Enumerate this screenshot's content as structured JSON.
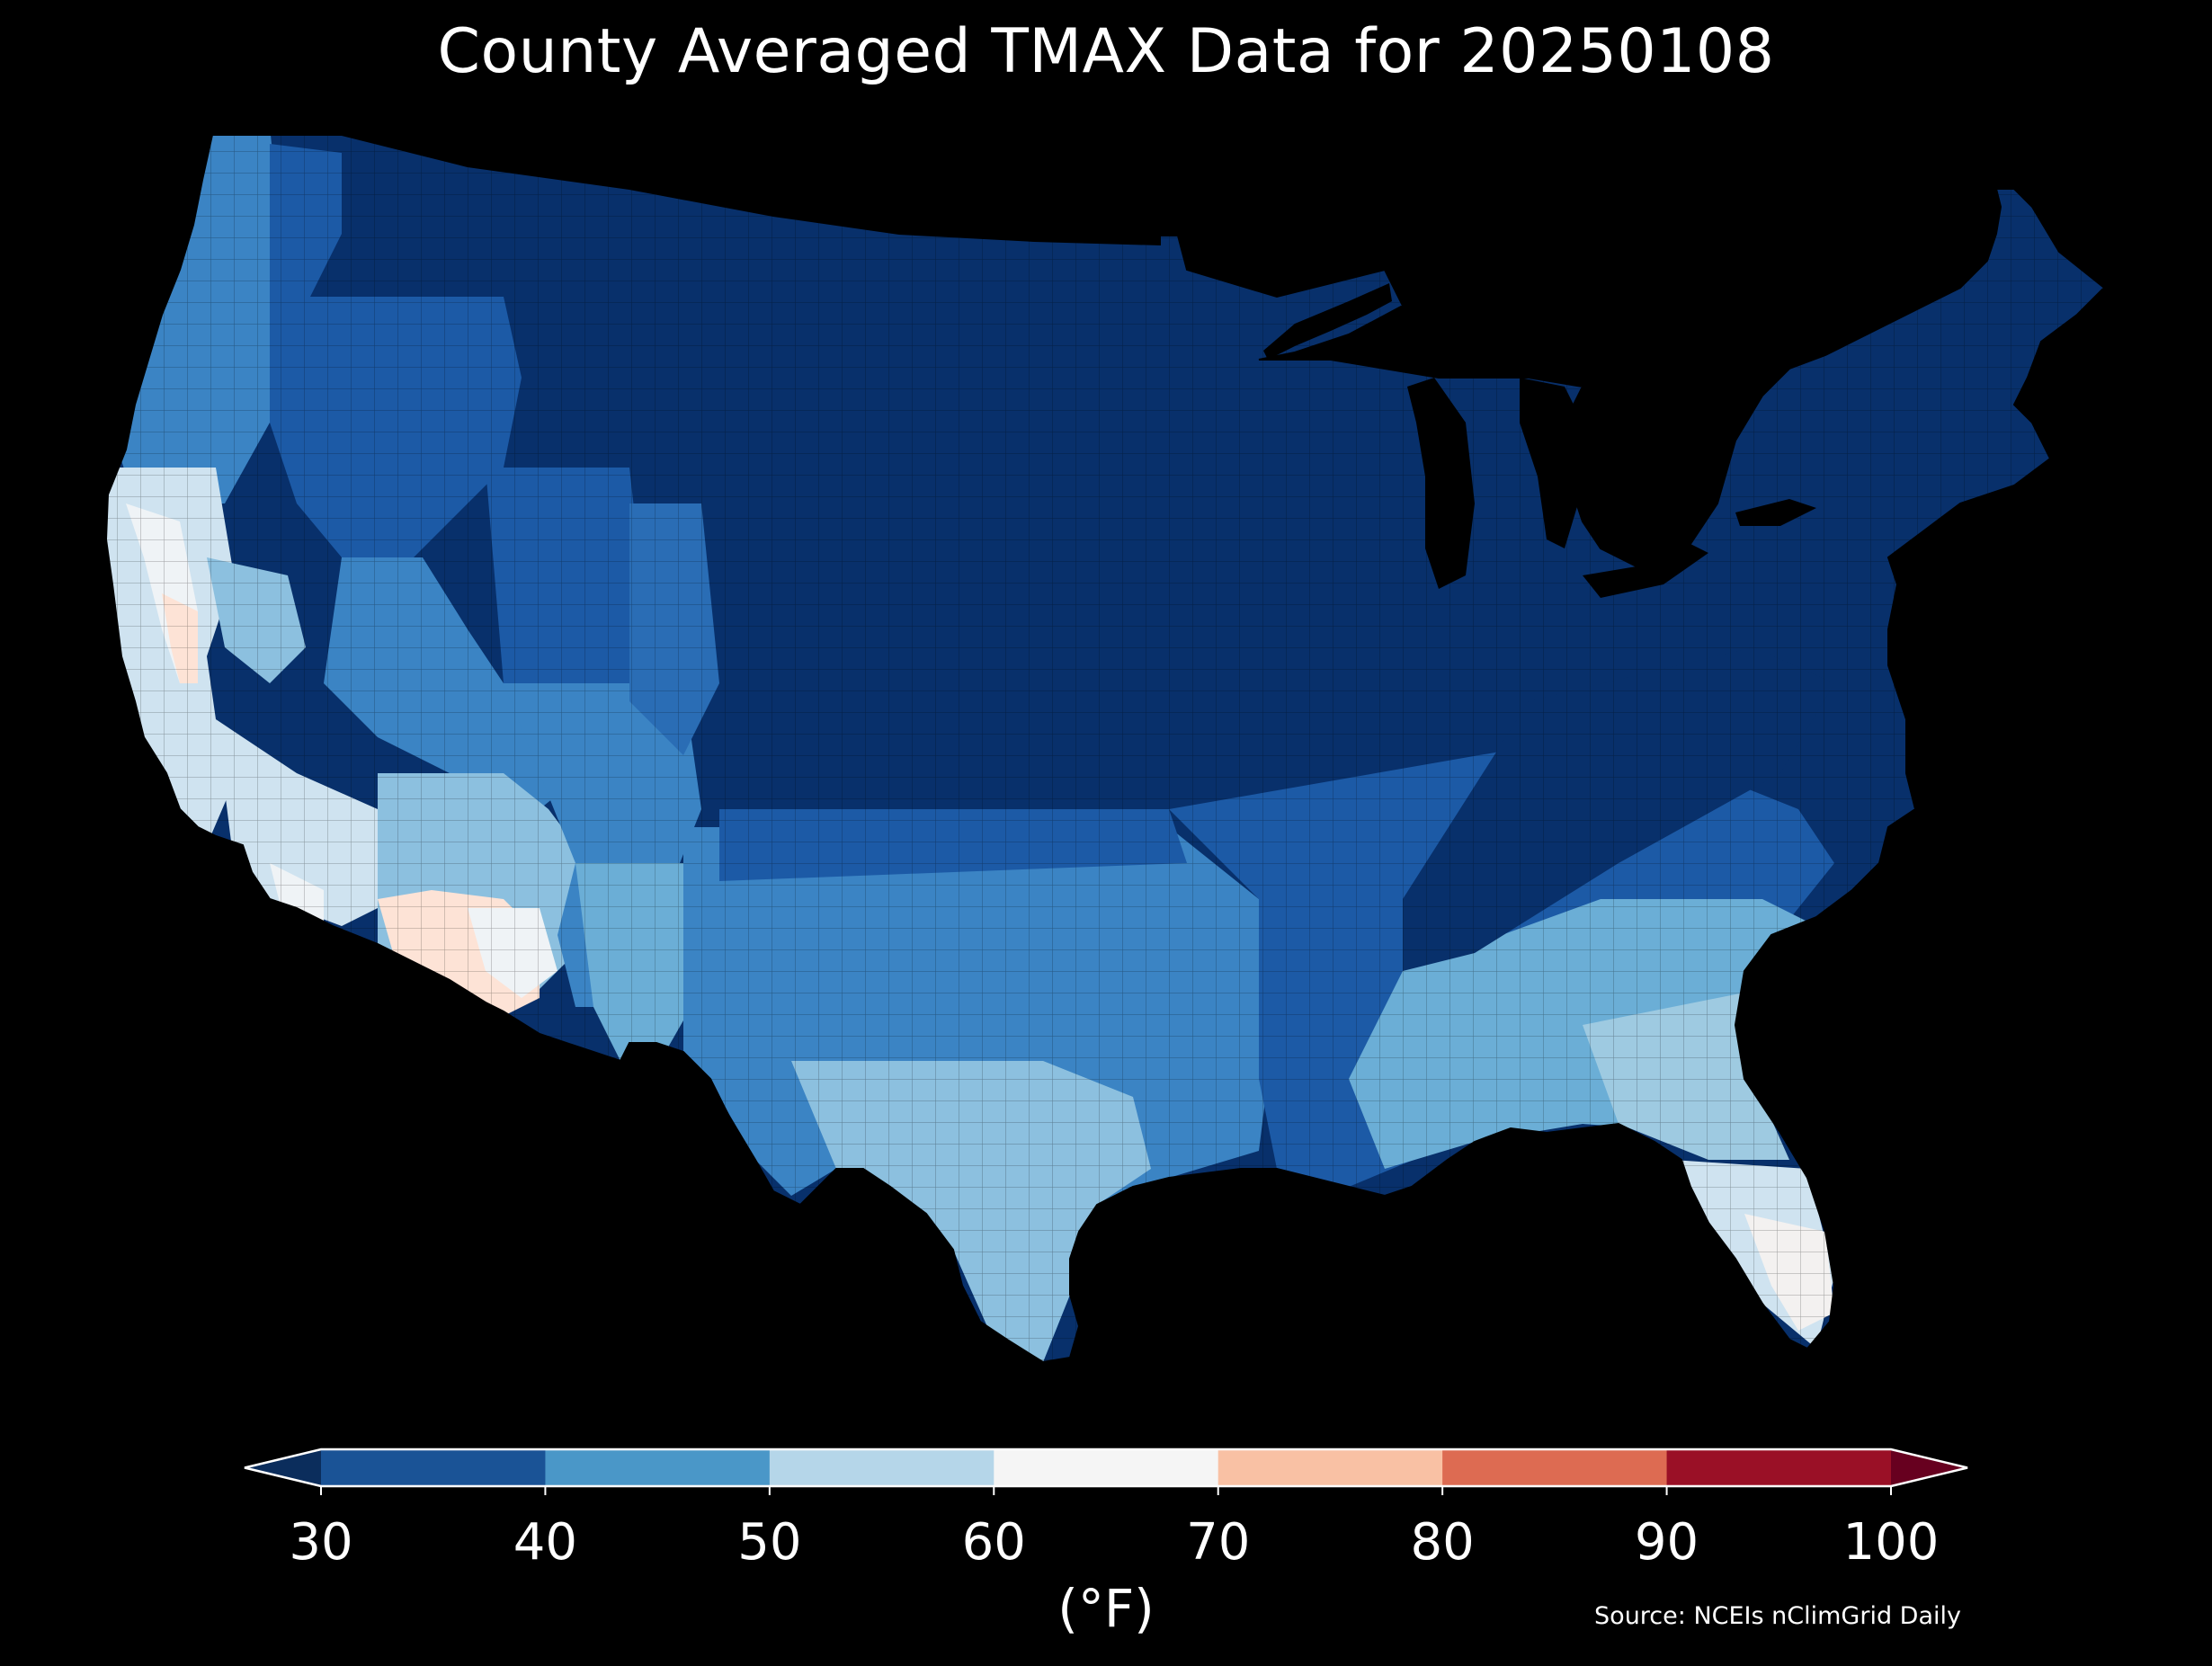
{
  "title": "County Averaged TMAX Data for 20250108",
  "colorbar": {
    "unit_label": "(°F)",
    "ticks": [
      "30",
      "40",
      "50",
      "60",
      "70",
      "80",
      "90",
      "100"
    ],
    "bins": [
      {
        "from": 30,
        "to": 40,
        "color": "#1a5396"
      },
      {
        "from": 40,
        "to": 50,
        "color": "#4a97c8"
      },
      {
        "from": 50,
        "to": 60,
        "color": "#b5d6e9"
      },
      {
        "from": 60,
        "to": 70,
        "color": "#f5f5f5"
      },
      {
        "from": 70,
        "to": 80,
        "color": "#f9c1a4"
      },
      {
        "from": 80,
        "to": 90,
        "color": "#dd6b52"
      },
      {
        "from": 90,
        "to": 100,
        "color": "#9a1026"
      }
    ],
    "under_color": "#0b2d5c",
    "over_color": "#67001f",
    "extend": "both"
  },
  "source": "Source: NCEIs nClimGrid Daily",
  "map_colors": {
    "coldest": "#08306b",
    "cold": "#1c5aa6",
    "cool": "#3b84c4",
    "mild": "#8cc0df",
    "pale": "#cfe3f0",
    "neutral": "#eff3f6",
    "warm": "#fde3d6",
    "background": "#000000"
  }
}
